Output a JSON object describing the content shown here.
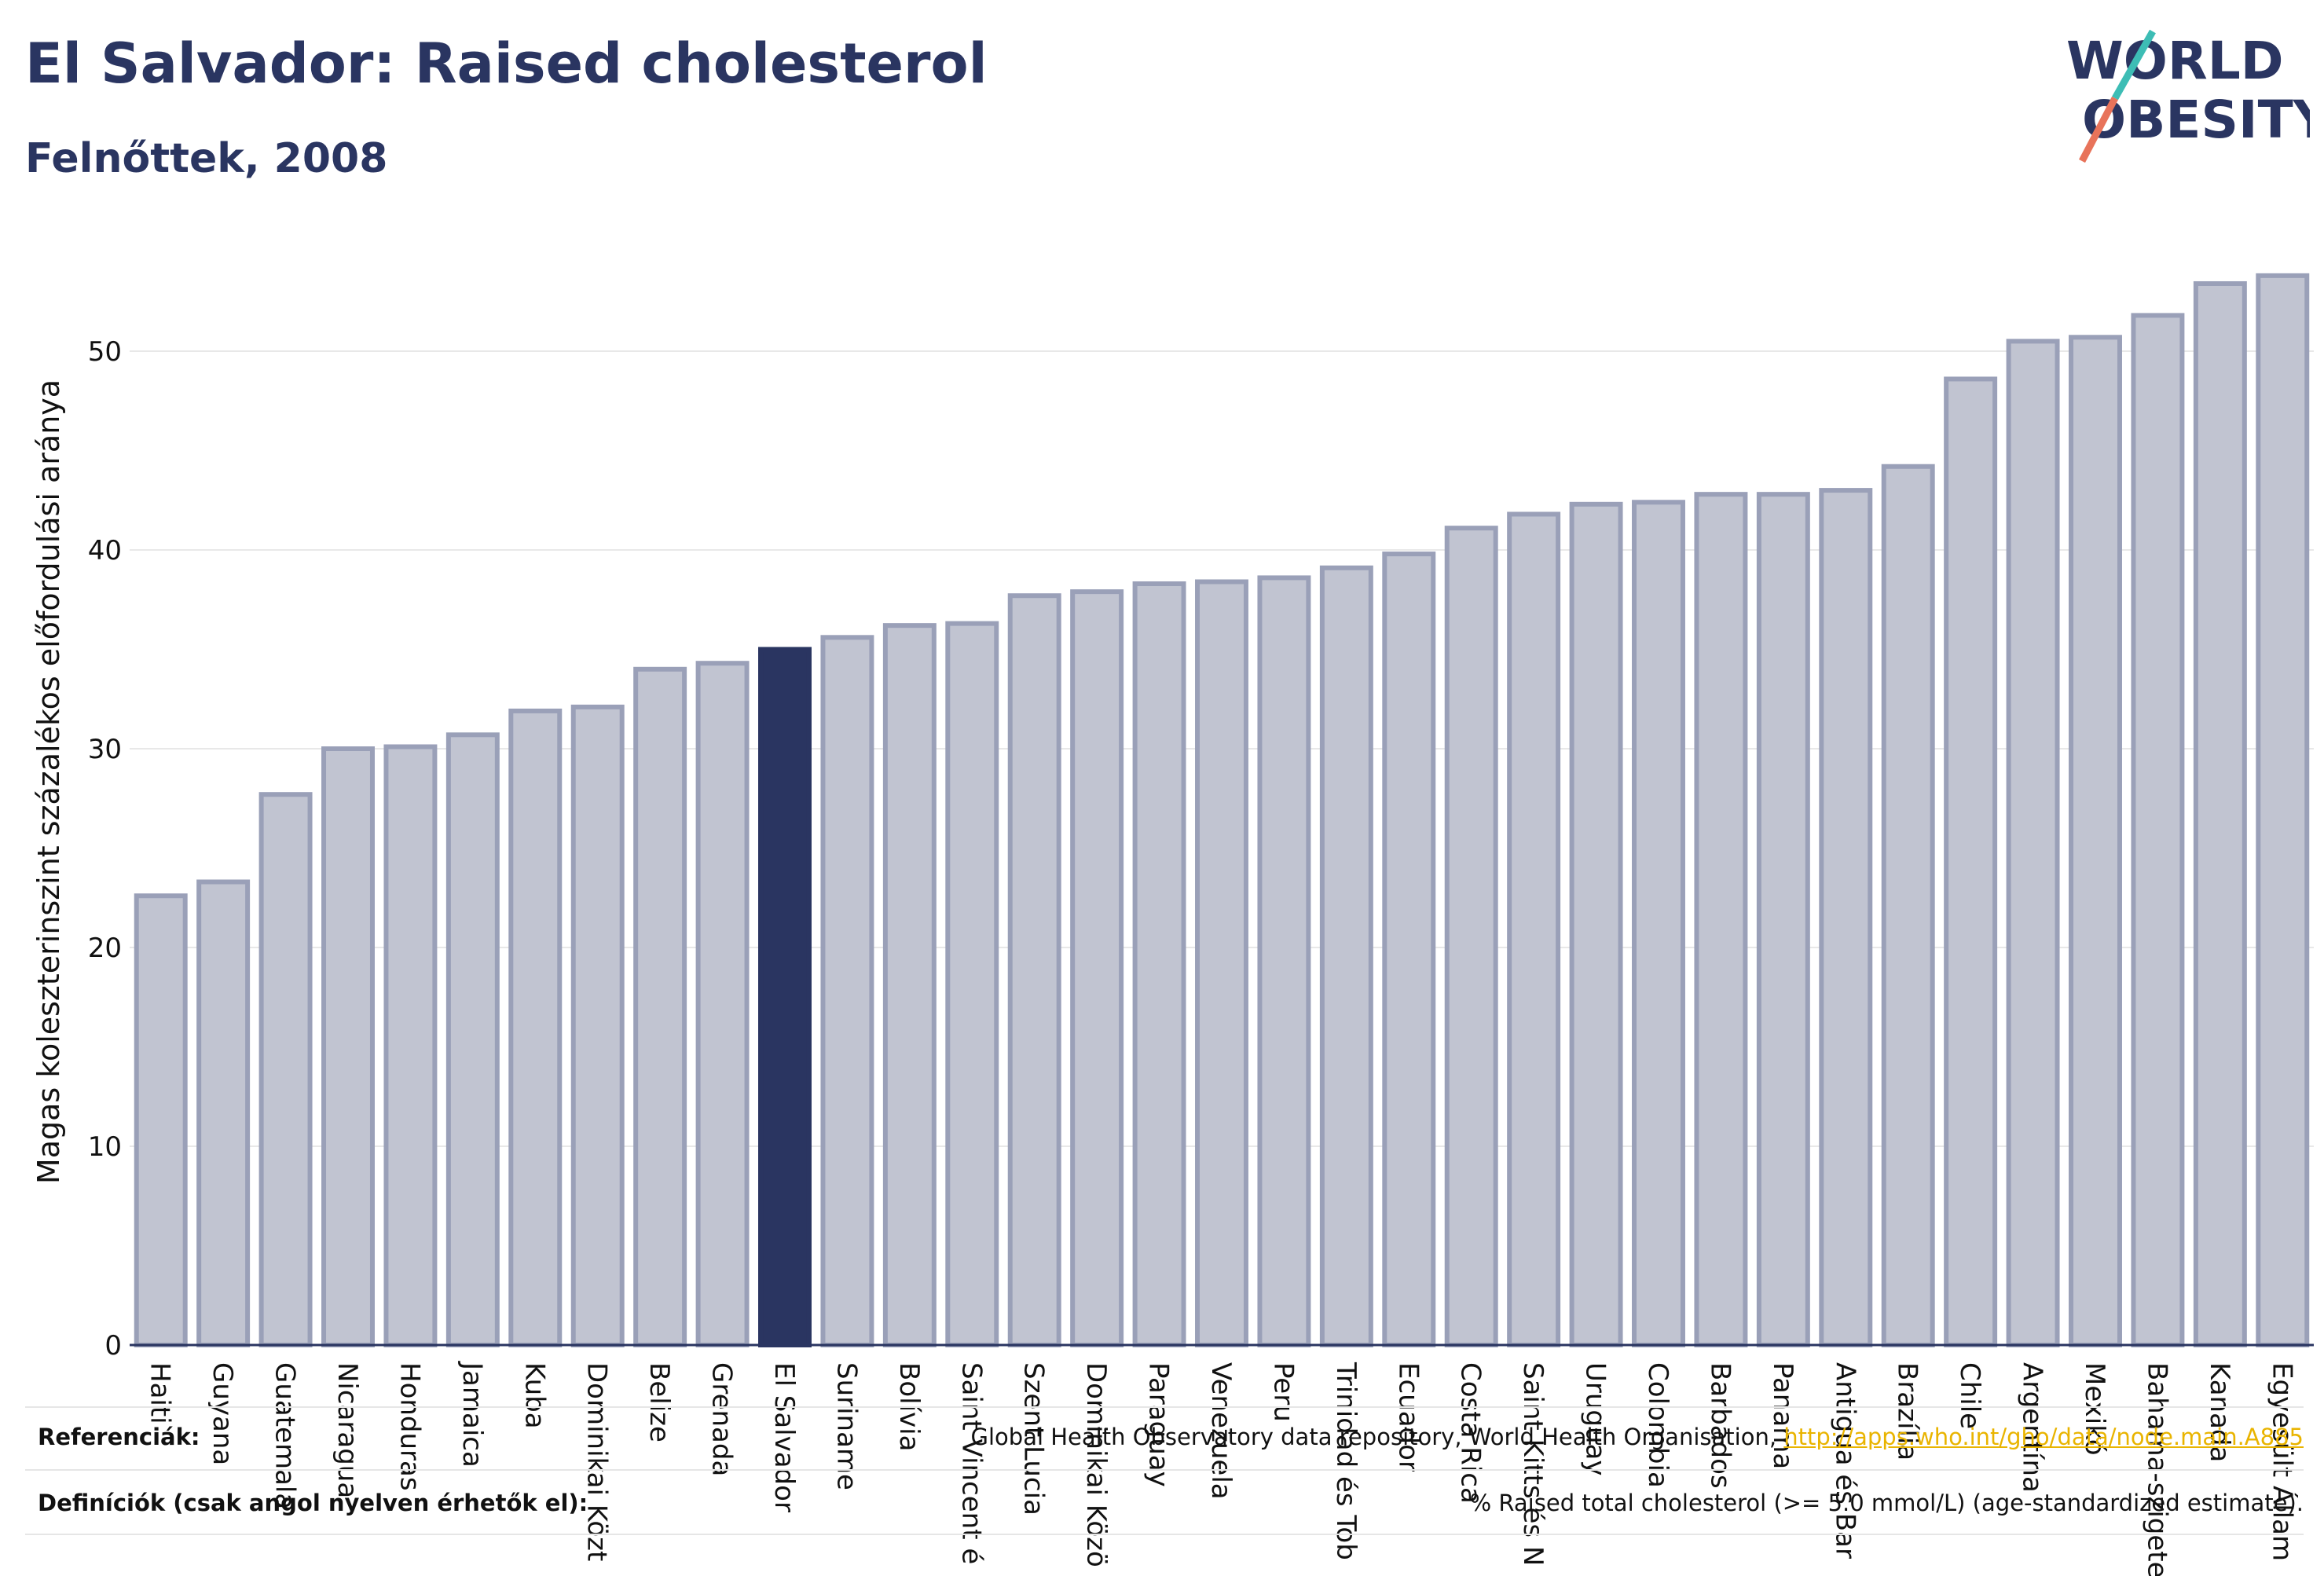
{
  "header": {
    "title": "El Salvador: Raised cholesterol",
    "subtitle": "Felnőttek, 2008"
  },
  "logo": {
    "line1": "WORLD",
    "line2": "OBESITY"
  },
  "colors": {
    "bar": "#c1c4d1",
    "bar_border": "#9aa0b8",
    "highlight": "#2a3561",
    "grid": "#e8e8e8",
    "axis": "#2a3561",
    "logo_text": "#2a3561",
    "logo_teal": "#3dbdb5",
    "logo_coral": "#e8735a"
  },
  "chart_data": {
    "type": "bar",
    "ylabel": "Magas koleszterinszint százalékos előfordulási aránya",
    "ylim": [
      0,
      55
    ],
    "yticks": [
      0,
      10,
      20,
      30,
      40,
      50
    ],
    "highlight": "El Salvador",
    "categories": [
      "Haiti",
      "Guyana",
      "Guatemala",
      "Nicaragua",
      "Honduras",
      "Jamaica",
      "Kuba",
      "Dominikai Közt",
      "Belize",
      "Grenada",
      "El Salvador",
      "Suriname",
      "Bolívia",
      "Saint Vincent é",
      "Szent Lucia",
      "Dominikai Közö",
      "Paraguay",
      "Venezuela",
      "Peru",
      "Trinidad és Tob",
      "Ecuador",
      "Costa Rica",
      "Saint Kitts és N",
      "Uruguay",
      "Colombia",
      "Barbados",
      "Panama",
      "Antigua és Bar",
      "Brazília",
      "Chile",
      "Argentína",
      "Mexikó",
      "Bahama-szigete",
      "Kanada",
      "Egyesült Állam"
    ],
    "values": [
      22.6,
      23.3,
      27.7,
      30.0,
      30.1,
      30.7,
      31.9,
      32.1,
      34.0,
      34.3,
      35.0,
      35.6,
      36.2,
      36.3,
      37.7,
      37.9,
      38.3,
      38.4,
      38.6,
      39.1,
      39.8,
      41.1,
      41.8,
      42.3,
      42.4,
      42.8,
      42.8,
      43.0,
      44.2,
      48.6,
      50.5,
      50.7,
      51.8,
      53.4,
      53.8
    ]
  },
  "footer": {
    "references_label": "Referenciák:",
    "references_text": "Global Health Observatory data repository, World Health Organisation, ",
    "references_link": "http://apps.who.int/gho/data/node.main.A885",
    "definitions_label": "Definíciók (csak angol nyelven érhetők el):",
    "definitions_text": "% Raised total cholesterol (>= 5.0 mmol/L) (age-standardized estimate)."
  }
}
